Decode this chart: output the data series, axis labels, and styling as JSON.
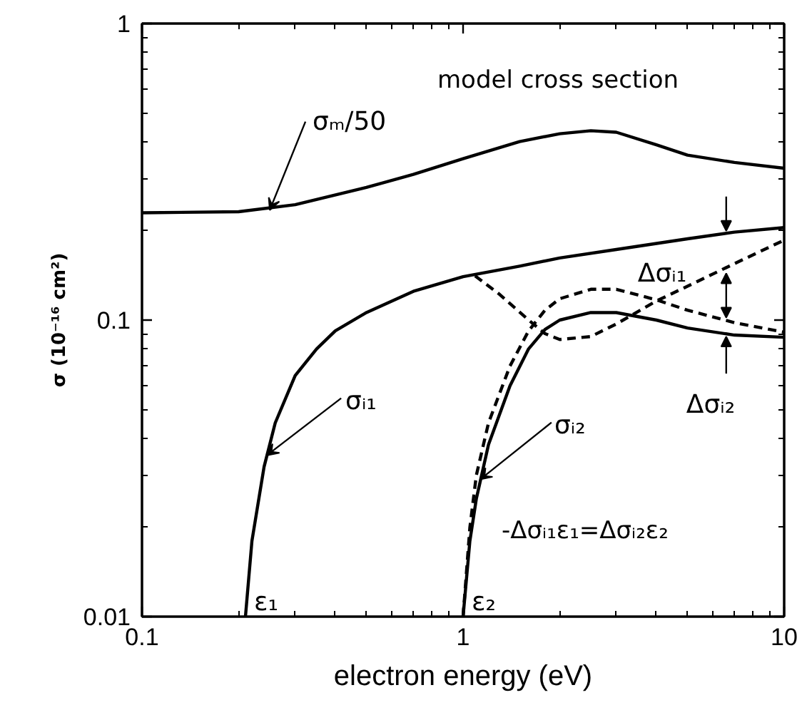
{
  "chart_data": {
    "type": "line",
    "xlabel": "electron energy (eV)",
    "ylabel": "σ (10⁻¹⁶ cm²)",
    "log": "xy",
    "grid": false,
    "xlim": [
      0.1,
      10
    ],
    "ylim": [
      0.01,
      1
    ],
    "xticks": [
      0.1,
      1,
      10
    ],
    "yticks": [
      0.01,
      0.1,
      1
    ],
    "series": [
      {
        "color": "#000000",
        "line_style": "solid",
        "x": [
          0.1,
          0.2,
          0.3,
          0.5,
          0.7,
          1,
          1.5,
          2,
          2.5,
          3,
          4,
          5,
          7,
          10
        ],
        "values": [
          0.23,
          0.232,
          0.245,
          0.28,
          0.31,
          0.35,
          0.4,
          0.425,
          0.435,
          0.43,
          0.39,
          0.36,
          0.34,
          0.325
        ]
      },
      {
        "color": "#000000",
        "line_style": "solid",
        "x": [
          0.21,
          0.22,
          0.24,
          0.26,
          0.3,
          0.35,
          0.4,
          0.5,
          0.7,
          1,
          1.5,
          2,
          3,
          5,
          7,
          10
        ],
        "values": [
          0.01,
          0.018,
          0.032,
          0.045,
          0.065,
          0.08,
          0.092,
          0.106,
          0.125,
          0.14,
          0.152,
          0.162,
          0.173,
          0.188,
          0.198,
          0.205
        ]
      },
      {
        "color": "#000000",
        "line_style": "solid",
        "x": [
          1.0,
          1.05,
          1.1,
          1.2,
          1.4,
          1.6,
          1.8,
          2,
          2.5,
          3,
          4,
          5,
          7,
          10
        ],
        "values": [
          0.01,
          0.018,
          0.025,
          0.038,
          0.06,
          0.08,
          0.093,
          0.1,
          0.106,
          0.106,
          0.1,
          0.094,
          0.089,
          0.0875
        ]
      },
      {
        "color": "#000000",
        "line_style": "dashed",
        "x": [
          1.09,
          1.3,
          1.6,
          1.8,
          2.0,
          2.5,
          3,
          4,
          5,
          7,
          10
        ],
        "values": [
          0.141,
          0.122,
          0.1,
          0.09,
          0.086,
          0.088,
          0.097,
          0.116,
          0.13,
          0.155,
          0.186
        ]
      },
      {
        "color": "#000000",
        "line_style": "dashed",
        "x": [
          1.0,
          1.05,
          1.1,
          1.2,
          1.4,
          1.6,
          1.8,
          2,
          2.5,
          3,
          4,
          5,
          7,
          10
        ],
        "values": [
          0.01,
          0.02,
          0.03,
          0.045,
          0.07,
          0.092,
          0.108,
          0.118,
          0.127,
          0.127,
          0.117,
          0.108,
          0.098,
          0.091
        ]
      }
    ],
    "annotations": [
      "model cross section",
      {
        "text": "σₘ/50",
        "x": 0.25,
        "y": 0.235
      },
      {
        "text": "σᵢ₁",
        "x": 0.245,
        "y": 0.035
      },
      {
        "text": "σᵢ₂",
        "x": 1.13,
        "y": 0.029
      },
      {
        "text": "Δσᵢ₁",
        "x": 6.6,
        "y": 0.2
      },
      {
        "text": "Δσᵢ₂",
        "x": 6.6,
        "y": 0.088
      },
      {
        "text": "ε₁",
        "x": 0.21,
        "y": 0.01
      },
      {
        "text": "ε₂",
        "x": 1.0,
        "y": 0.01
      },
      "-Δσᵢ₁ε₁=Δσᵢ₂ε₂"
    ]
  }
}
